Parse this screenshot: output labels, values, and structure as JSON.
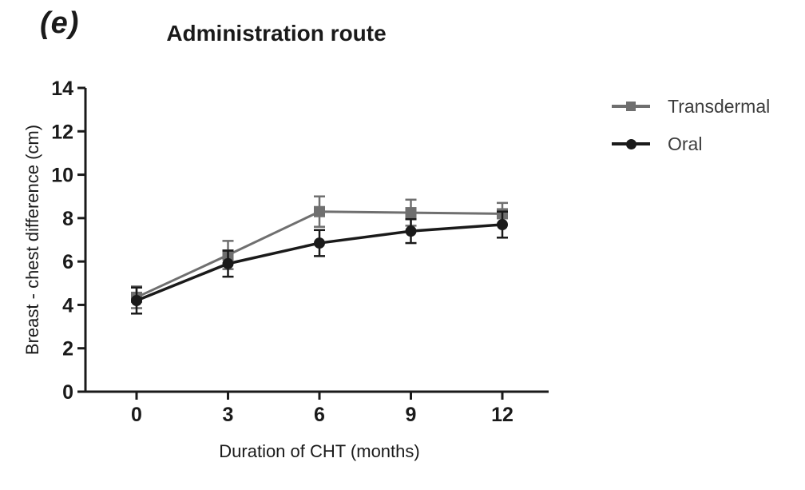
{
  "figure": {
    "panel_label": "(e)"
  },
  "chart_data": {
    "type": "line",
    "title": "Administration route",
    "xlabel": "Duration of CHT (months)",
    "ylabel": "Breast - chest difference (cm)",
    "x": [
      0,
      3,
      6,
      9,
      12
    ],
    "ylim": [
      0,
      14
    ],
    "ytick_step": 2,
    "grid": false,
    "legend_position": "right",
    "error_bars": true,
    "series": [
      {
        "name": "Transdermal",
        "marker": "square",
        "color": "#6f6f6f",
        "values": [
          4.35,
          6.3,
          8.3,
          8.25,
          8.2
        ],
        "errors": [
          0.5,
          0.65,
          0.7,
          0.6,
          0.5
        ]
      },
      {
        "name": "Oral",
        "marker": "circle",
        "color": "#1a1a1a",
        "values": [
          4.2,
          5.9,
          6.85,
          7.4,
          7.7
        ],
        "errors": [
          0.6,
          0.6,
          0.6,
          0.55,
          0.6
        ]
      }
    ],
    "axis_color": "#1a1a1a"
  }
}
